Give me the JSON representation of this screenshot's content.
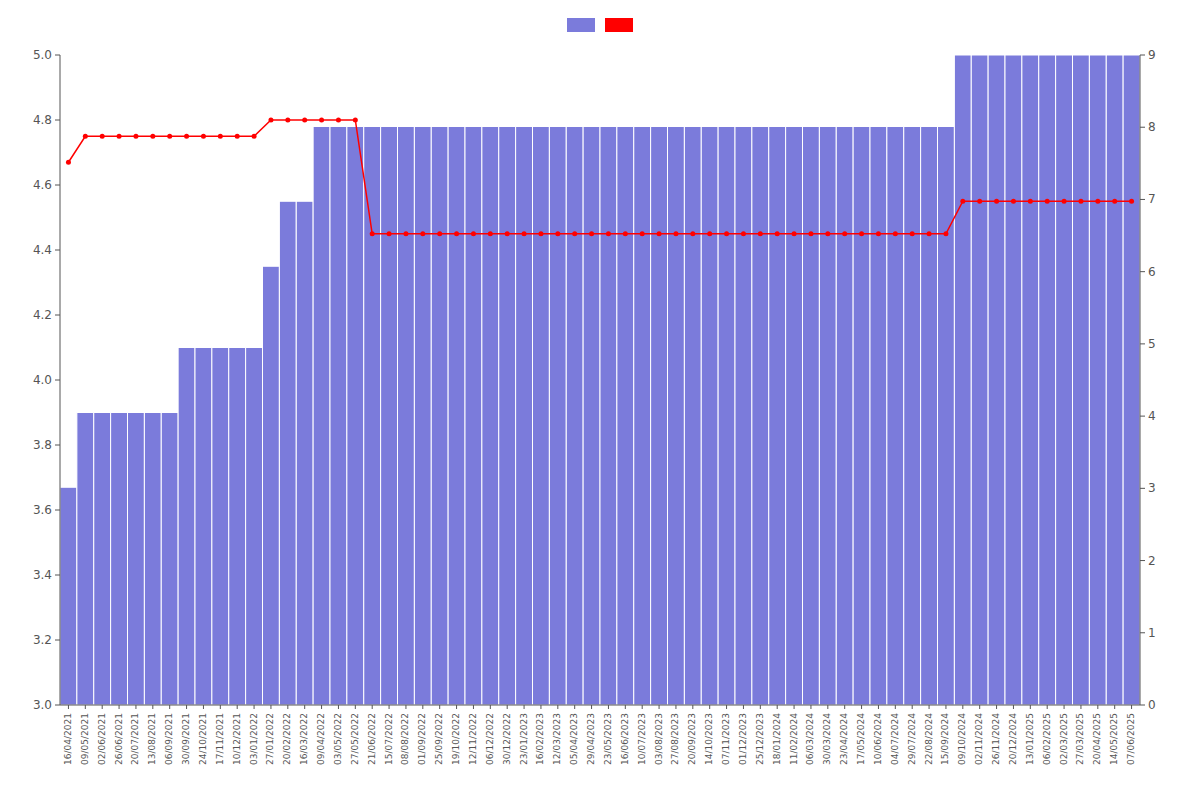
{
  "chart_data": {
    "type": "bar",
    "categories": [
      "16/04/2021",
      "09/05/2021",
      "02/06/2021",
      "26/06/2021",
      "20/07/2021",
      "13/08/2021",
      "06/09/2021",
      "30/09/2021",
      "24/10/2021",
      "17/11/2021",
      "10/12/2021",
      "03/01/2022",
      "27/01/2022",
      "20/02/2022",
      "16/03/2022",
      "09/04/2022",
      "03/05/2022",
      "27/05/2022",
      "21/06/2022",
      "15/07/2022",
      "08/08/2022",
      "01/09/2022",
      "25/09/2022",
      "19/10/2022",
      "12/11/2022",
      "06/12/2022",
      "30/12/2022",
      "23/01/2023",
      "16/02/2023",
      "12/03/2023",
      "05/04/2023",
      "29/04/2023",
      "23/05/2023",
      "16/06/2023",
      "10/07/2023",
      "03/08/2023",
      "27/08/2023",
      "20/09/2023",
      "14/10/2023",
      "07/11/2023",
      "01/12/2023",
      "25/12/2023",
      "18/01/2024",
      "11/02/2024",
      "06/03/2024",
      "30/03/2024",
      "23/04/2024",
      "17/05/2024",
      "10/06/2024",
      "04/07/2024",
      "29/07/2024",
      "22/08/2024",
      "15/09/2024",
      "09/10/2024",
      "02/11/2024",
      "26/11/2024",
      "20/12/2024",
      "13/01/2025",
      "06/02/2025",
      "02/03/2025",
      "27/03/2025",
      "20/04/2025",
      "14/05/2025",
      "07/06/2025"
    ],
    "series": [
      {
        "type": "bar",
        "color": "#7b7bdb",
        "values": [
          3.67,
          3.9,
          3.9,
          3.9,
          3.9,
          3.9,
          3.9,
          4.1,
          4.1,
          4.1,
          4.1,
          4.1,
          4.35,
          4.55,
          4.55,
          4.78,
          4.78,
          4.78,
          4.78,
          4.78,
          4.78,
          4.78,
          4.78,
          4.78,
          4.78,
          4.78,
          4.78,
          4.78,
          4.78,
          4.78,
          4.78,
          4.78,
          4.78,
          4.78,
          4.78,
          4.78,
          4.78,
          4.78,
          4.78,
          4.78,
          4.78,
          4.78,
          4.78,
          4.78,
          4.78,
          4.78,
          4.78,
          4.78,
          4.78,
          4.78,
          4.78,
          4.78,
          4.78,
          5.0,
          5.0,
          5.0,
          5.0,
          5.0,
          5.0,
          5.0,
          5.0,
          5.0,
          5.0,
          5.0
        ]
      },
      {
        "type": "line",
        "color": "#ff0000",
        "marker": "circle",
        "values": [
          4.67,
          4.75,
          4.75,
          4.75,
          4.75,
          4.75,
          4.75,
          4.75,
          4.75,
          4.75,
          4.75,
          4.75,
          4.8,
          4.8,
          4.8,
          4.8,
          4.8,
          4.8,
          4.45,
          4.45,
          4.45,
          4.45,
          4.45,
          4.45,
          4.45,
          4.45,
          4.45,
          4.45,
          4.45,
          4.45,
          4.45,
          4.45,
          4.45,
          4.45,
          4.45,
          4.45,
          4.45,
          4.45,
          4.45,
          4.45,
          4.45,
          4.45,
          4.45,
          4.45,
          4.45,
          4.45,
          4.45,
          4.45,
          4.45,
          4.45,
          4.45,
          4.45,
          4.45,
          4.55,
          4.55,
          4.55,
          4.55,
          4.55,
          4.55,
          4.55,
          4.55,
          4.55,
          4.55,
          4.55
        ]
      }
    ],
    "ylim": [
      3.0,
      5.0
    ],
    "yticks": [
      {
        "value": 3.0,
        "label": "3.0"
      },
      3.2,
      3.4,
      3.6,
      3.8,
      {
        "value": 4.0,
        "label": "4.0"
      },
      4.2,
      4.4,
      4.6,
      4.8,
      {
        "value": 5.0,
        "label": "5.0"
      }
    ],
    "y2lim": [
      0,
      9
    ],
    "y2ticks": [
      0,
      1,
      2,
      3,
      4,
      5,
      6,
      7,
      8,
      9
    ],
    "legend": "top",
    "grid": false
  }
}
